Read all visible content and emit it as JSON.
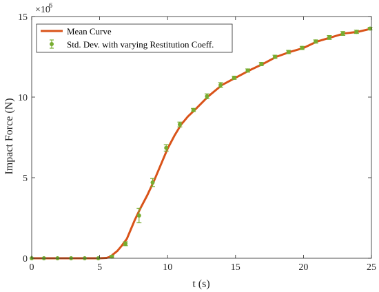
{
  "chart_data": {
    "type": "line",
    "xlabel": "t (s)",
    "ylabel": "Impact Force (N)",
    "y_exponent_label": "×10",
    "y_exponent_power": "6",
    "xlim": [
      0,
      25
    ],
    "ylim": [
      0,
      15
    ],
    "x_ticks": [
      0,
      5,
      10,
      15,
      20,
      25
    ],
    "y_ticks": [
      0,
      5,
      10,
      15
    ],
    "grid": false,
    "legend_position": "top-left",
    "colors": {
      "line": "#D95319",
      "marker": "#77AC30",
      "axis": "#262626"
    },
    "series": [
      {
        "name": "Mean Curve",
        "kind": "line",
        "x": [
          0,
          1,
          2,
          3,
          4,
          5,
          5.5,
          5.8,
          6,
          6.3,
          6.6,
          7,
          7.3,
          7.6,
          8,
          8.5,
          9,
          9.5,
          10,
          10.5,
          11,
          11.5,
          12,
          13,
          14,
          15,
          16,
          17,
          18,
          19,
          20,
          21,
          22,
          23,
          24,
          25
        ],
        "y": [
          0,
          0,
          0,
          0,
          0,
          0,
          0.02,
          0.1,
          0.25,
          0.45,
          0.75,
          1.2,
          1.8,
          2.4,
          3.1,
          3.9,
          4.8,
          5.8,
          6.8,
          7.6,
          8.3,
          8.8,
          9.2,
          10.05,
          10.75,
          11.2,
          11.65,
          12.05,
          12.5,
          12.8,
          13.05,
          13.45,
          13.7,
          13.95,
          14.05,
          14.25
        ]
      },
      {
        "name": "Std. Dev. with varying Restitution Coeff.",
        "kind": "errorbar",
        "x": [
          0,
          0.9,
          1.9,
          2.9,
          3.9,
          4.9,
          5.9,
          6.9,
          7.9,
          8.9,
          9.9,
          10.9,
          11.9,
          12.9,
          13.9,
          14.9,
          15.9,
          16.9,
          17.9,
          18.9,
          19.9,
          20.9,
          21.9,
          22.9,
          23.9,
          24.9
        ],
        "y": [
          0,
          0,
          0,
          0,
          0,
          0,
          0.1,
          0.9,
          2.65,
          4.7,
          6.85,
          8.3,
          9.2,
          10.05,
          10.75,
          11.2,
          11.65,
          12.05,
          12.5,
          12.8,
          13.05,
          13.45,
          13.7,
          13.95,
          14.05,
          14.25
        ],
        "err": [
          0,
          0,
          0,
          0,
          0,
          0,
          0.08,
          0.12,
          0.45,
          0.25,
          0.2,
          0.15,
          0.1,
          0.15,
          0.15,
          0.1,
          0.1,
          0.1,
          0.1,
          0.1,
          0.1,
          0.1,
          0.12,
          0.12,
          0.1,
          0.08
        ]
      }
    ]
  }
}
